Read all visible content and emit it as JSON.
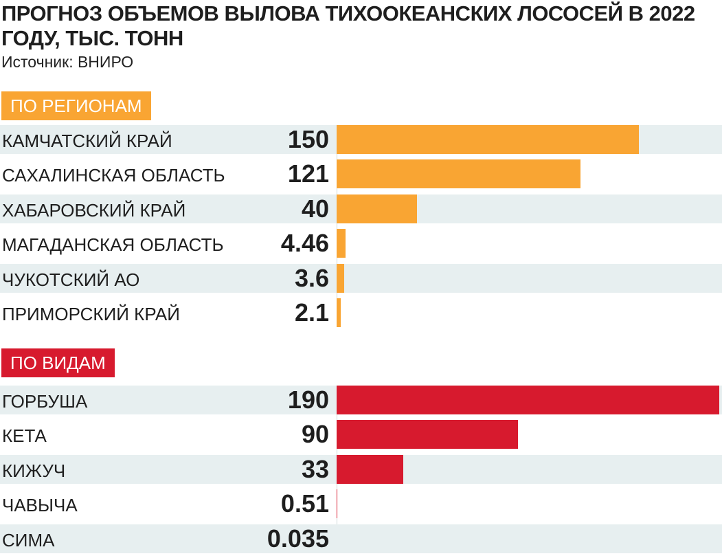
{
  "title": "ПРОГНОЗ ОБЪЕМОВ ВЫЛОВА ТИХООКЕАНСКИХ ЛОСОСЕЙ В 2022 ГОДУ, ТЫС. ТОНН",
  "source": "Источник: ВНИРО",
  "colors": {
    "regions": "#f9a533",
    "species": "#d71a2e",
    "shade": "#e7eff0"
  },
  "chart_data": [
    {
      "type": "bar",
      "orientation": "horizontal",
      "section_label": "ПО РЕГИОНАМ",
      "categories": [
        "КАМЧАТСКИЙ КРАЙ",
        "САХАЛИНСКАЯ ОБЛАСТЬ",
        "ХАБАРОВСКИЙ КРАЙ",
        "МАГАДАНСКАЯ ОБЛАСТЬ",
        "ЧУКОТСКИЙ АО",
        "ПРИМОРСКИЙ КРАЙ"
      ],
      "values": [
        150,
        121,
        40,
        4.46,
        3.6,
        2.1
      ],
      "value_labels": [
        "150",
        "121",
        "40",
        "4.46",
        "3.6",
        "2.1"
      ],
      "color": "#f9a533"
    },
    {
      "type": "bar",
      "orientation": "horizontal",
      "section_label": "ПО ВИДАМ",
      "categories": [
        "ГОРБУША",
        "КЕТА",
        "КИЖУЧ",
        "ЧАВЫЧА",
        "СИМА"
      ],
      "values": [
        190,
        90,
        33,
        0.51,
        0.035
      ],
      "value_labels": [
        "190",
        "90",
        "33",
        "0.51",
        "0.035"
      ],
      "color": "#d71a2e"
    }
  ]
}
